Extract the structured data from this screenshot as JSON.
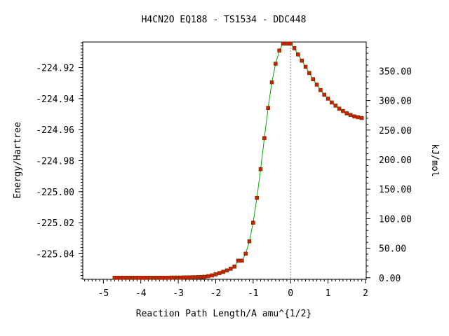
{
  "chart_data": {
    "type": "line",
    "title": "H4CN2O   EQ188 - TS1534 - DDC448",
    "xlabel": "Reaction Path Length/A amu^{1/2}",
    "ylabel": "Energy/Hartree",
    "y2label": "kJ/mol",
    "xlim": [
      -5.55,
      2.02
    ],
    "ylim": [
      -225.0565,
      -224.9035
    ],
    "y2_zero_energy": -225.0555,
    "hartree_to_kjmol": 2625.5,
    "xticks": [
      -5,
      -4,
      -3,
      -2,
      -1,
      0,
      1,
      2
    ],
    "yticks": [
      -224.92,
      -224.94,
      -224.96,
      -224.98,
      -225.0,
      -225.02,
      -225.04
    ],
    "ytick_labels": [
      "-224.92",
      "-224.94",
      "-224.96",
      "-224.98",
      "-225.00",
      "-225.02",
      "-225.04"
    ],
    "y2ticks": [
      0,
      50,
      100,
      150,
      200,
      250,
      300,
      350
    ],
    "y2tick_labels": [
      "0.00",
      "50.00",
      "100.00",
      "150.00",
      "200.00",
      "250.00",
      "300.00",
      "350.00"
    ],
    "ts_marker_x": 0,
    "colors": {
      "line": "#00aa00",
      "marker": "#cc2200",
      "marker_edge": "#663300",
      "ts_line": "#888888"
    },
    "series": [
      {
        "points": [
          [
            -4.7,
            -225.0555
          ],
          [
            -4.62,
            -225.0555
          ],
          [
            -4.54,
            -225.0555
          ],
          [
            -4.46,
            -225.0555
          ],
          [
            -4.38,
            -225.0555
          ],
          [
            -4.3,
            -225.0555
          ],
          [
            -4.22,
            -225.0555
          ],
          [
            -4.14,
            -225.0555
          ],
          [
            -4.06,
            -225.0555
          ],
          [
            -3.98,
            -225.0555
          ],
          [
            -3.9,
            -225.0555
          ],
          [
            -3.82,
            -225.0555
          ],
          [
            -3.74,
            -225.0555
          ],
          [
            -3.66,
            -225.0555
          ],
          [
            -3.58,
            -225.0555
          ],
          [
            -3.5,
            -225.0555
          ],
          [
            -3.42,
            -225.0555
          ],
          [
            -3.34,
            -225.0555
          ],
          [
            -3.26,
            -225.0555
          ],
          [
            -3.18,
            -225.0554
          ],
          [
            -3.1,
            -225.0554
          ],
          [
            -3.02,
            -225.0554
          ],
          [
            -2.94,
            -225.0554
          ],
          [
            -2.86,
            -225.0553
          ],
          [
            -2.78,
            -225.0553
          ],
          [
            -2.7,
            -225.0553
          ],
          [
            -2.62,
            -225.0552
          ],
          [
            -2.54,
            -225.0552
          ],
          [
            -2.46,
            -225.0551
          ],
          [
            -2.38,
            -225.055
          ],
          [
            -2.3,
            -225.0549
          ],
          [
            -2.2,
            -225.0545
          ],
          [
            -2.1,
            -225.054
          ],
          [
            -2.0,
            -225.0533
          ],
          [
            -1.9,
            -225.0525
          ],
          [
            -1.8,
            -225.0517
          ],
          [
            -1.7,
            -225.0508
          ],
          [
            -1.6,
            -225.0497
          ],
          [
            -1.5,
            -225.0483
          ],
          [
            -1.4,
            -225.0445
          ],
          [
            -1.3,
            -225.0445
          ],
          [
            -1.2,
            -225.04
          ],
          [
            -1.1,
            -225.032
          ],
          [
            -1.0,
            -225.02
          ],
          [
            -0.9,
            -225.004
          ],
          [
            -0.8,
            -224.9855
          ],
          [
            -0.7,
            -224.9655
          ],
          [
            -0.6,
            -224.946
          ],
          [
            -0.5,
            -224.9295
          ],
          [
            -0.4,
            -224.9175
          ],
          [
            -0.3,
            -224.909
          ],
          [
            -0.2,
            -224.9045
          ],
          [
            -0.1,
            -224.9045
          ],
          [
            0.0,
            -224.9045
          ],
          [
            0.1,
            -224.9075
          ],
          [
            0.2,
            -224.9115
          ],
          [
            0.3,
            -224.9155
          ],
          [
            0.4,
            -224.9195
          ],
          [
            0.5,
            -224.9235
          ],
          [
            0.6,
            -224.9275
          ],
          [
            0.7,
            -224.931
          ],
          [
            0.8,
            -224.9345
          ],
          [
            0.9,
            -224.9375
          ],
          [
            1.0,
            -224.94
          ],
          [
            1.1,
            -224.9425
          ],
          [
            1.2,
            -224.9445
          ],
          [
            1.3,
            -224.9465
          ],
          [
            1.4,
            -224.948
          ],
          [
            1.5,
            -224.9495
          ],
          [
            1.6,
            -224.9505
          ],
          [
            1.7,
            -224.9515
          ],
          [
            1.8,
            -224.952
          ],
          [
            1.9,
            -224.9525
          ]
        ]
      }
    ]
  }
}
